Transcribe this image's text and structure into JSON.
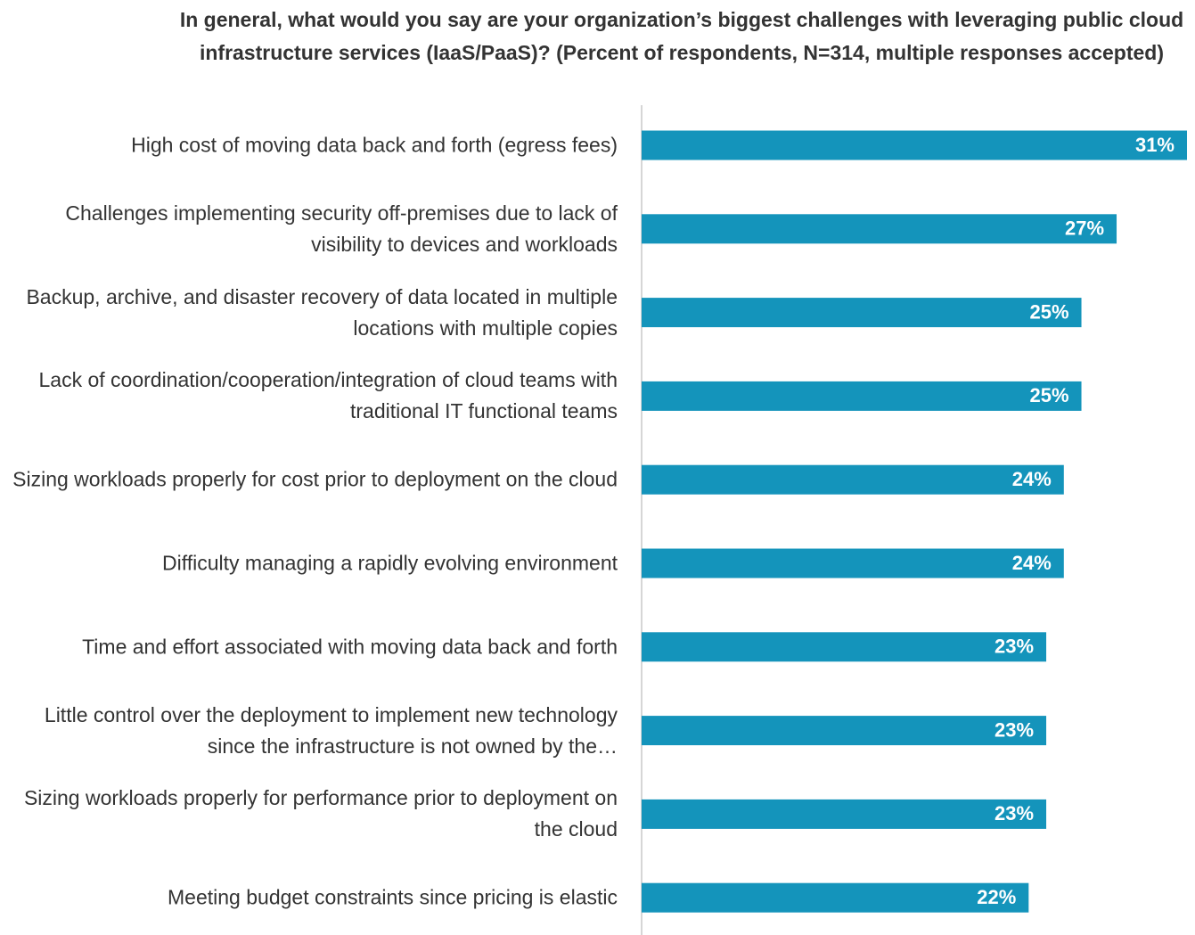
{
  "chart_data": {
    "type": "bar",
    "orientation": "horizontal",
    "title": "In general, what would you say are your organization’s biggest challenges with leveraging public cloud infrastructure services (IaaS/PaaS)? (Percent of respondents, N=314, multiple responses accepted)",
    "categories": [
      "High cost of moving data back and forth (egress fees)",
      "Challenges implementing security off-premises due to lack of visibility to devices and workloads",
      "Backup, archive, and disaster recovery of data located in multiple locations with multiple copies",
      "Lack of coordination/cooperation/integration of cloud teams with traditional IT functional teams",
      "Sizing workloads properly for cost prior to deployment on the cloud",
      "Difficulty managing a rapidly evolving environment",
      "Time and effort associated with moving data back and forth",
      "Little control over the deployment to implement new technology since the infrastructure is not owned by the…",
      "Sizing workloads properly for performance prior to deployment on the cloud",
      "Meeting budget constraints since pricing is elastic"
    ],
    "values": [
      31,
      27,
      25,
      25,
      24,
      24,
      23,
      23,
      23,
      22
    ],
    "value_labels": [
      "31%",
      "27%",
      "25%",
      "25%",
      "24%",
      "24%",
      "23%",
      "23%",
      "23%",
      "22%"
    ],
    "color": "#1494bb",
    "xlim": [
      0,
      31
    ]
  }
}
